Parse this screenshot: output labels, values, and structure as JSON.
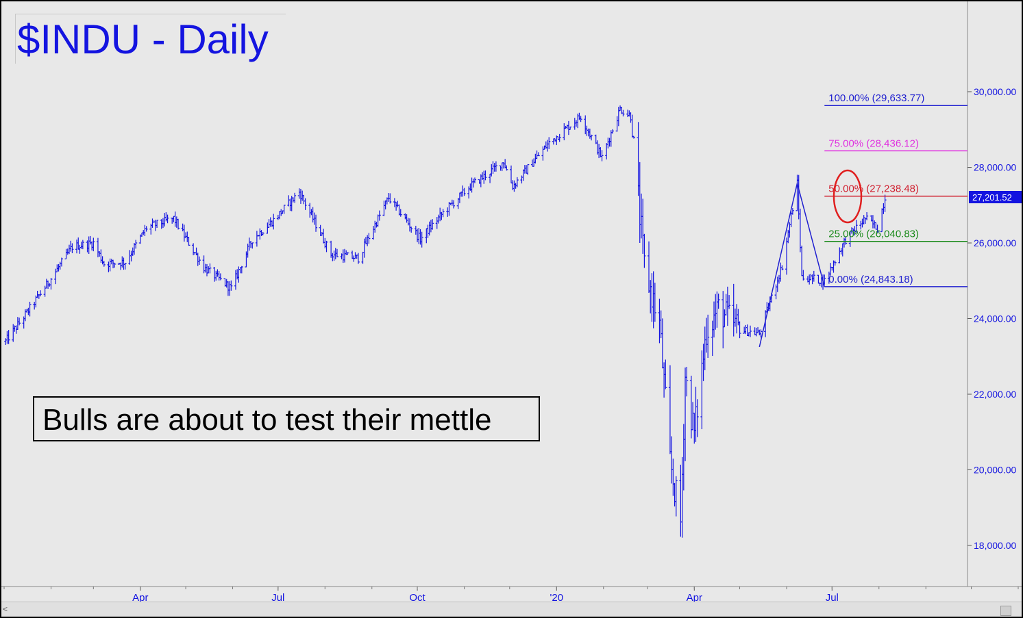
{
  "title": "$INDU - Daily",
  "annotation": "Bulls are about to test their mettle",
  "price_badge": "27,201.52",
  "colors": {
    "price": "#1414e0",
    "fib_100": "#2020d0",
    "fib_75": "#e030e0",
    "fib_50": "#d02030",
    "fib_25": "#1a8a1a",
    "fib_0": "#2020d0",
    "circle": "#e02020",
    "badge_bg": "#1414e0"
  },
  "chart_data": {
    "type": "ohlc",
    "title": "$INDU - Daily",
    "xlabel": "",
    "ylabel": "",
    "ylim": [
      16500,
      32000
    ],
    "x_ticks": [
      "Apr",
      "Jul",
      "Oct",
      "'20",
      "Apr",
      "Jul"
    ],
    "y_ticks": [
      {
        "value": 18000,
        "label": "18,000.00"
      },
      {
        "value": 20000,
        "label": "20,000.00"
      },
      {
        "value": 22000,
        "label": "22,000.00"
      },
      {
        "value": 24000,
        "label": "24,000.00"
      },
      {
        "value": 26000,
        "label": "26,000.00"
      },
      {
        "value": 28000,
        "label": "28,000.00"
      },
      {
        "value": 30000,
        "label": "30,000.00"
      }
    ],
    "last_price": 27201.52,
    "fib_levels": [
      {
        "label": "100.00% (29,633.77)",
        "value": 29633.77,
        "color": "#2020d0"
      },
      {
        "label": "75.00% (28,436.12)",
        "value": 28436.12,
        "color": "#e030e0"
      },
      {
        "label": "50.00% (27,238.48)",
        "value": 27238.48,
        "color": "#d02030"
      },
      {
        "label": "25.00% (26,040.83)",
        "value": 26040.83,
        "color": "#1a8a1a"
      },
      {
        "label": "0.00% (24,843.18)",
        "value": 24843.18,
        "color": "#2020d0"
      }
    ],
    "abc_pattern": [
      {
        "date": "2020-05-14",
        "value": 23250
      },
      {
        "date": "2020-06-08",
        "value": 27580
      },
      {
        "date": "2020-06-26",
        "value": 24843
      }
    ],
    "series": [
      {
        "approx_closes": [
          [
            "2019-01-02",
            23400
          ],
          [
            "2019-01-15",
            24100
          ],
          [
            "2019-01-31",
            25000
          ],
          [
            "2019-02-15",
            25900
          ],
          [
            "2019-03-01",
            26000
          ],
          [
            "2019-03-08",
            25450
          ],
          [
            "2019-03-22",
            25500
          ],
          [
            "2019-04-05",
            26400
          ],
          [
            "2019-04-23",
            26650
          ],
          [
            "2019-05-13",
            25350
          ],
          [
            "2019-05-31",
            24800
          ],
          [
            "2019-06-14",
            26100
          ],
          [
            "2019-06-28",
            26600
          ],
          [
            "2019-07-15",
            27350
          ],
          [
            "2019-08-05",
            25700
          ],
          [
            "2019-08-23",
            25600
          ],
          [
            "2019-09-12",
            27200
          ],
          [
            "2019-10-03",
            26100
          ],
          [
            "2019-10-18",
            26800
          ],
          [
            "2019-11-05",
            27500
          ],
          [
            "2019-11-27",
            28150
          ],
          [
            "2019-12-03",
            27500
          ],
          [
            "2019-12-27",
            28650
          ],
          [
            "2020-01-17",
            29350
          ],
          [
            "2020-01-31",
            28250
          ],
          [
            "2020-02-12",
            29550
          ],
          [
            "2020-02-19",
            29350
          ],
          [
            "2020-02-28",
            25400
          ],
          [
            "2020-03-09",
            23850
          ],
          [
            "2020-03-16",
            20200
          ],
          [
            "2020-03-23",
            18600
          ],
          [
            "2020-03-26",
            22500
          ],
          [
            "2020-04-01",
            20950
          ],
          [
            "2020-04-09",
            23700
          ],
          [
            "2020-04-17",
            24250
          ],
          [
            "2020-05-01",
            23700
          ],
          [
            "2020-05-14",
            23600
          ],
          [
            "2020-05-29",
            25400
          ],
          [
            "2020-06-08",
            27580
          ],
          [
            "2020-06-11",
            25100
          ],
          [
            "2020-06-26",
            25000
          ],
          [
            "2020-07-10",
            26100
          ],
          [
            "2020-07-23",
            26650
          ],
          [
            "2020-07-31",
            26400
          ],
          [
            "2020-08-05",
            27200
          ]
        ]
      }
    ]
  }
}
